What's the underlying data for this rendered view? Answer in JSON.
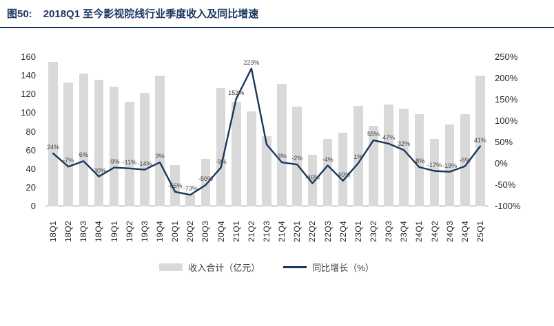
{
  "figure": {
    "title_prefix": "图50:",
    "title": "2018Q1 至今影视院线行业季度收入及同比增速"
  },
  "chart_data": {
    "type": "bar",
    "subtype": "combo-bar-line",
    "categories": [
      "18Q1",
      "18Q2",
      "18Q3",
      "18Q4",
      "19Q1",
      "19Q2",
      "19Q3",
      "19Q4",
      "20Q1",
      "20Q2",
      "20Q3",
      "20Q4",
      "21Q1",
      "21Q2",
      "21Q3",
      "21Q4",
      "22Q1",
      "22Q2",
      "22Q3",
      "22Q4",
      "23Q1",
      "23Q2",
      "23Q3",
      "23Q4",
      "24Q1",
      "24Q2",
      "24Q3",
      "24Q4",
      "25Q1"
    ],
    "series": [
      {
        "name": "收入合计（亿元）",
        "type": "bar",
        "axis": "left",
        "values": [
          155,
          133,
          142,
          136,
          128,
          112,
          122,
          140,
          44,
          13,
          51,
          127,
          112,
          102,
          75,
          131,
          107,
          55,
          72,
          79,
          108,
          86,
          109,
          105,
          99,
          72,
          88,
          99,
          140
        ]
      },
      {
        "name": "同比增长（%）",
        "type": "line",
        "axis": "right",
        "values": [
          24,
          -7,
          6,
          -30,
          -9,
          -11,
          -14,
          3,
          -66,
          -73,
          -50,
          -9,
          152,
          223,
          45,
          3,
          -2,
          -46,
          -4,
          -40,
          1,
          55,
          47,
          32,
          -8,
          -17,
          -19,
          -6,
          41
        ],
        "labels": [
          "24%",
          "-7%",
          "6%",
          "-30%",
          "-9%",
          "-11%",
          "-14%",
          "3%",
          "-66%",
          "-73%",
          "-50%",
          "-9%",
          "152%",
          "223%",
          "",
          "3%",
          "-2%",
          "-46%",
          "-4%",
          "-40%",
          "1%",
          "55%",
          "47%",
          "32%",
          "-8%",
          "-17%",
          "-19%",
          "-6%",
          "41%"
        ]
      }
    ],
    "left_axis": {
      "min": 0,
      "max": 160,
      "ticks": [
        "160",
        "140",
        "120",
        "100",
        "80",
        "60",
        "40",
        "20",
        "0"
      ]
    },
    "right_axis": {
      "min": -100,
      "max": 250,
      "ticks": [
        "250%",
        "200%",
        "150%",
        "100%",
        "50%",
        "0%",
        "-50%",
        "-100%"
      ]
    },
    "colors": {
      "bar": "#d9d9d9",
      "line": "#17375e",
      "title": "#17375e"
    },
    "legend_position": "bottom",
    "grid": false
  }
}
